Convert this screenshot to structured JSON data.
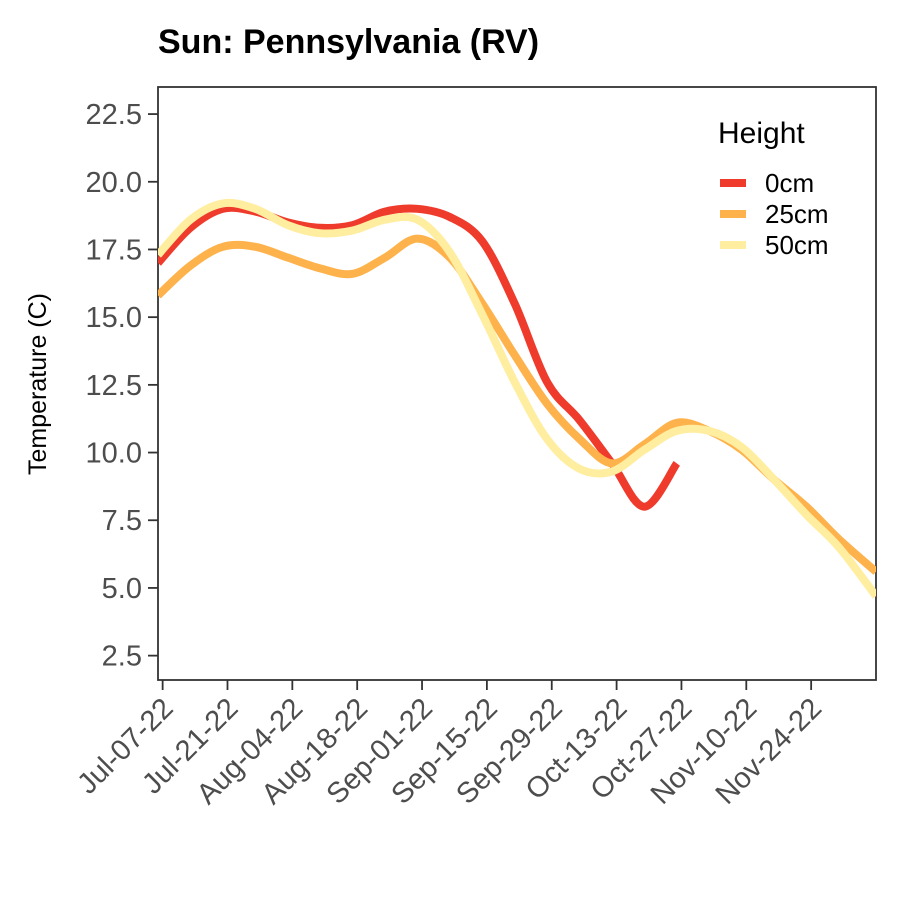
{
  "chart_data": {
    "type": "line",
    "title": "Sun: Pennsylvania (RV)",
    "xlabel": "",
    "ylabel": "Temperature (C)",
    "x_ticks": [
      "Jul-07-22",
      "Jul-21-22",
      "Aug-04-22",
      "Aug-18-22",
      "Sep-01-22",
      "Sep-15-22",
      "Sep-29-22",
      "Oct-13-22",
      "Oct-27-22",
      "Nov-10-22",
      "Nov-24-22"
    ],
    "y_ticks": [
      2.5,
      5.0,
      7.5,
      10.0,
      12.5,
      15.0,
      17.5,
      20.0,
      22.5
    ],
    "ylim": [
      1.6,
      23.5
    ],
    "xlim": [
      "Jul-06-22",
      "Dec-08-22"
    ],
    "grid": false,
    "legend": {
      "title": "Height",
      "position": "top-right"
    },
    "series": [
      {
        "name": "0cm",
        "color": "#ef3b2c",
        "points": [
          [
            "Jul-06-22",
            17.0
          ],
          [
            "Jul-13-22",
            18.3
          ],
          [
            "Jul-20-22",
            19.0
          ],
          [
            "Jul-27-22",
            18.9
          ],
          [
            "Aug-03-22",
            18.5
          ],
          [
            "Aug-10-22",
            18.3
          ],
          [
            "Aug-17-22",
            18.4
          ],
          [
            "Aug-24-22",
            18.9
          ],
          [
            "Aug-31-22",
            19.0
          ],
          [
            "Sep-07-22",
            18.7
          ],
          [
            "Sep-14-22",
            17.8
          ],
          [
            "Sep-21-22",
            15.5
          ],
          [
            "Sep-28-22",
            12.6
          ],
          [
            "Oct-05-22",
            11.2
          ],
          [
            "Oct-12-22",
            9.6
          ],
          [
            "Oct-19-22",
            8.0
          ],
          [
            "Oct-26-22",
            9.6
          ]
        ]
      },
      {
        "name": "25cm",
        "color": "#feb24c",
        "points": [
          [
            "Jul-06-22",
            15.8
          ],
          [
            "Jul-13-22",
            16.9
          ],
          [
            "Jul-20-22",
            17.6
          ],
          [
            "Jul-27-22",
            17.6
          ],
          [
            "Aug-03-22",
            17.2
          ],
          [
            "Aug-10-22",
            16.8
          ],
          [
            "Aug-17-22",
            16.6
          ],
          [
            "Aug-24-22",
            17.2
          ],
          [
            "Aug-31-22",
            17.9
          ],
          [
            "Sep-07-22",
            17.2
          ],
          [
            "Sep-14-22",
            15.5
          ],
          [
            "Sep-21-22",
            13.6
          ],
          [
            "Sep-28-22",
            11.8
          ],
          [
            "Oct-05-22",
            10.5
          ],
          [
            "Oct-12-22",
            9.6
          ],
          [
            "Oct-19-22",
            10.3
          ],
          [
            "Oct-26-22",
            11.1
          ],
          [
            "Nov-02-22",
            10.8
          ],
          [
            "Nov-09-22",
            10.1
          ],
          [
            "Nov-16-22",
            9.0
          ],
          [
            "Nov-23-22",
            8.0
          ],
          [
            "Nov-30-22",
            6.8
          ],
          [
            "Dec-08-22",
            5.6
          ]
        ]
      },
      {
        "name": "50cm",
        "color": "#ffeda0",
        "points": [
          [
            "Jul-06-22",
            17.3
          ],
          [
            "Jul-13-22",
            18.6
          ],
          [
            "Jul-20-22",
            19.2
          ],
          [
            "Jul-27-22",
            19.0
          ],
          [
            "Aug-03-22",
            18.4
          ],
          [
            "Aug-10-22",
            18.1
          ],
          [
            "Aug-17-22",
            18.2
          ],
          [
            "Aug-24-22",
            18.6
          ],
          [
            "Aug-31-22",
            18.6
          ],
          [
            "Sep-07-22",
            17.4
          ],
          [
            "Sep-14-22",
            15.1
          ],
          [
            "Sep-21-22",
            12.6
          ],
          [
            "Sep-28-22",
            10.5
          ],
          [
            "Oct-05-22",
            9.4
          ],
          [
            "Oct-12-22",
            9.3
          ],
          [
            "Oct-19-22",
            10.1
          ],
          [
            "Oct-26-22",
            10.8
          ],
          [
            "Nov-02-22",
            10.8
          ],
          [
            "Nov-09-22",
            10.2
          ],
          [
            "Nov-16-22",
            9.0
          ],
          [
            "Nov-23-22",
            7.7
          ],
          [
            "Nov-30-22",
            6.5
          ],
          [
            "Dec-08-22",
            4.7
          ]
        ]
      }
    ]
  }
}
